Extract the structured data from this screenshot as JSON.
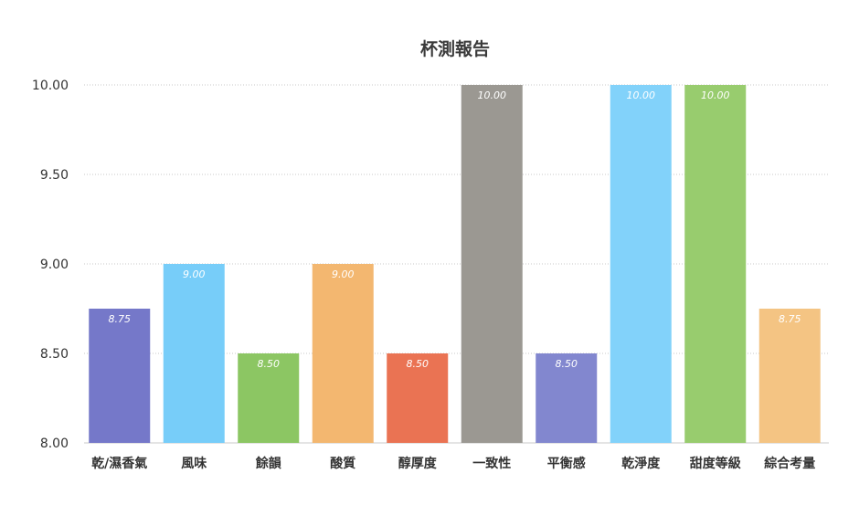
{
  "chart_data": {
    "type": "bar",
    "title": "杯測報告",
    "xlabel": "",
    "ylabel": "",
    "ylim": [
      8.0,
      10.0
    ],
    "yticks": [
      8.0,
      8.5,
      9.0,
      9.5,
      10.0
    ],
    "ytick_labels": [
      "8.00",
      "8.50",
      "9.00",
      "9.50",
      "10.00"
    ],
    "grid": true,
    "legend": "none",
    "categories": [
      "乾/濕香氣",
      "風味",
      "餘韻",
      "酸質",
      "醇厚度",
      "一致性",
      "平衡感",
      "乾淨度",
      "甜度等級",
      "綜合考量"
    ],
    "values": [
      8.75,
      9.0,
      8.5,
      9.0,
      8.5,
      10.0,
      8.5,
      10.0,
      10.0,
      8.75
    ],
    "value_labels": [
      "8.75",
      "9.00",
      "8.50",
      "9.00",
      "8.50",
      "10.00",
      "8.50",
      "10.00",
      "10.00",
      "8.75"
    ],
    "colors": [
      "#7578c9",
      "#77cdf9",
      "#8cc663",
      "#f3b770",
      "#ea7353",
      "#9b9892",
      "#8287cf",
      "#82d2fa",
      "#98cc6e",
      "#f4c483"
    ]
  }
}
